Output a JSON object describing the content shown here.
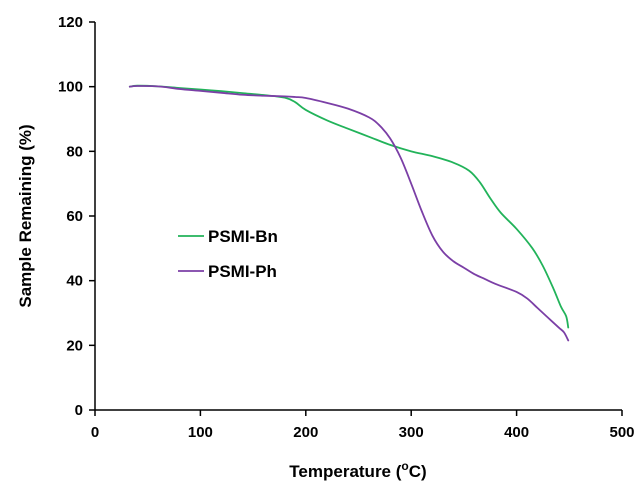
{
  "chart_data": {
    "type": "line",
    "xlabel": "Temperature (",
    "xlabel_sup": "o",
    "xlabel_unit": "C)",
    "ylabel": "Sample Remaining (%)",
    "xlim": [
      0,
      500
    ],
    "ylim": [
      0,
      120
    ],
    "xticks": [
      0,
      100,
      200,
      300,
      400,
      500
    ],
    "yticks": [
      0,
      20,
      40,
      60,
      80,
      100,
      120
    ],
    "grid": false,
    "legend_position": "center-left",
    "series": [
      {
        "name": "PSMI-Bn",
        "color": "#22b35a",
        "x": [
          33,
          40,
          60,
          80,
          100,
          120,
          140,
          160,
          180,
          190,
          200,
          220,
          240,
          260,
          280,
          300,
          320,
          340,
          355,
          365,
          375,
          385,
          400,
          415,
          425,
          435,
          442,
          447,
          449
        ],
        "y": [
          100,
          100.3,
          100.1,
          99.6,
          99.1,
          98.6,
          98.0,
          97.4,
          96.6,
          95.2,
          92.8,
          89.6,
          87.0,
          84.5,
          82.0,
          80.0,
          78.5,
          76.5,
          74.0,
          70.5,
          65.5,
          61.0,
          56.0,
          50.0,
          44.5,
          37.5,
          32.0,
          29.0,
          25.5
        ]
      },
      {
        "name": "PSMI-Ph",
        "color": "#7b3fa6",
        "x": [
          33,
          40,
          60,
          80,
          100,
          120,
          140,
          160,
          180,
          190,
          200,
          220,
          240,
          260,
          270,
          280,
          290,
          300,
          310,
          320,
          330,
          340,
          350,
          360,
          370,
          380,
          400,
          410,
          420,
          430,
          440,
          445,
          449
        ],
        "y": [
          100,
          100.2,
          100.1,
          99.3,
          98.7,
          98.1,
          97.5,
          97.2,
          97.0,
          96.8,
          96.5,
          95.0,
          93.2,
          90.5,
          88.0,
          84.0,
          78.0,
          70.0,
          61.5,
          54.0,
          49.0,
          46.0,
          44.0,
          42.0,
          40.5,
          39.0,
          36.5,
          34.5,
          31.5,
          28.5,
          25.5,
          24.0,
          21.5
        ]
      }
    ]
  }
}
